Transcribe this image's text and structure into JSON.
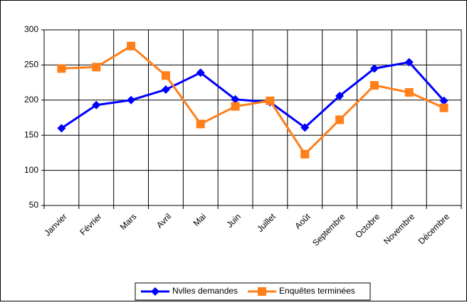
{
  "chart_data": {
    "type": "line",
    "categories": [
      "Janvier",
      "Février",
      "Mars",
      "Avril",
      "Mai",
      "Juin",
      "Juillet",
      "Août",
      "Septembre",
      "Octobre",
      "Novembre",
      "Décembre"
    ],
    "series": [
      {
        "name": "Nvlles demandes",
        "color": "#0000ff",
        "marker": "diamond",
        "values": [
          160,
          193,
          200,
          215,
          239,
          201,
          197,
          161,
          206,
          245,
          254,
          199
        ]
      },
      {
        "name": "Enquêtes terminées",
        "color": "#ff7f1a",
        "marker": "square",
        "values": [
          245,
          247,
          277,
          235,
          166,
          191,
          199,
          123,
          172,
          221,
          211,
          189
        ]
      }
    ],
    "ylim": [
      50,
      300
    ],
    "yticks": [
      50,
      100,
      150,
      200,
      250,
      300
    ],
    "grid": true,
    "legend": "bottom"
  }
}
